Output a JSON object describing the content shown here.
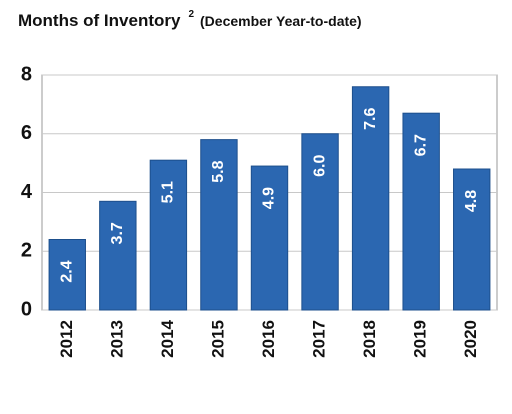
{
  "chart_data": {
    "type": "bar",
    "title": "Months of Inventory",
    "title_note": "2",
    "subtitle": "(December Year-to-date)",
    "categories": [
      "2012",
      "2013",
      "2014",
      "2015",
      "2016",
      "2017",
      "2018",
      "2019",
      "2020"
    ],
    "values": [
      2.4,
      3.7,
      5.1,
      5.8,
      4.9,
      6.0,
      7.6,
      6.7,
      4.8
    ],
    "value_labels": [
      "2.4",
      "3.7",
      "5.1",
      "5.8",
      "4.9",
      "6.0",
      "7.6",
      "6.7",
      "4.8"
    ],
    "color": "#2b67b1",
    "ylim": [
      0,
      8
    ],
    "yticks": [
      0,
      2,
      4,
      6,
      8
    ],
    "grid": true
  }
}
